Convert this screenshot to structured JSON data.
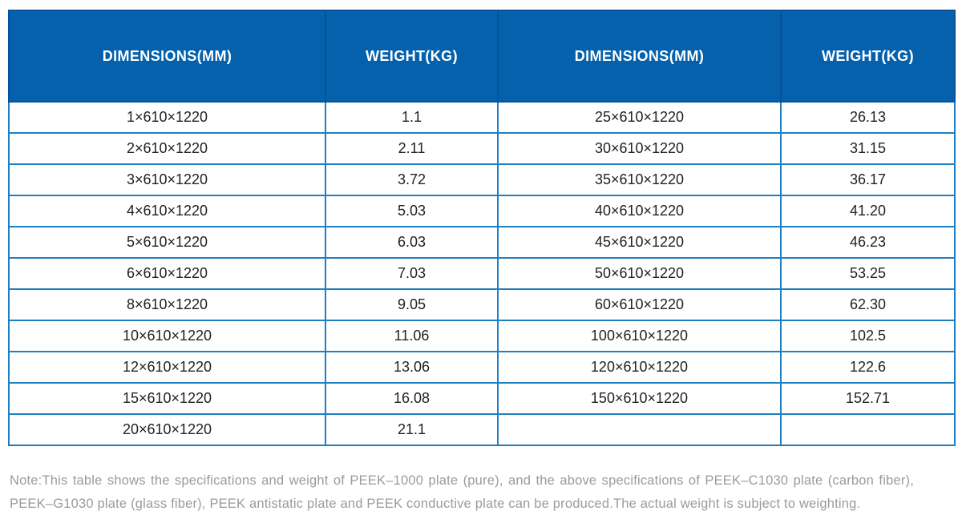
{
  "colors": {
    "header_bg": "#0561ac",
    "header_border": "#05529c",
    "header_text": "#ffffff",
    "body_border": "#1e7fc3",
    "body_text": "#222222",
    "note_text": "#9b9b9b"
  },
  "table": {
    "headers": [
      "DIMENSIONS(MM)",
      "WEIGHT(KG)",
      "DIMENSIONS(MM)",
      "WEIGHT(KG)"
    ],
    "rows": [
      [
        "1×610×1220",
        "1.1",
        "25×610×1220",
        "26.13"
      ],
      [
        "2×610×1220",
        "2.11",
        "30×610×1220",
        "31.15"
      ],
      [
        "3×610×1220",
        "3.72",
        "35×610×1220",
        "36.17"
      ],
      [
        "4×610×1220",
        "5.03",
        "40×610×1220",
        "41.20"
      ],
      [
        "5×610×1220",
        "6.03",
        "45×610×1220",
        "46.23"
      ],
      [
        "6×610×1220",
        "7.03",
        "50×610×1220",
        "53.25"
      ],
      [
        "8×610×1220",
        "9.05",
        "60×610×1220",
        "62.30"
      ],
      [
        "10×610×1220",
        "11.06",
        "100×610×1220",
        "102.5"
      ],
      [
        "12×610×1220",
        "13.06",
        "120×610×1220",
        "122.6"
      ],
      [
        "15×610×1220",
        "16.08",
        "150×610×1220",
        "152.71"
      ],
      [
        "20×610×1220",
        "21.1",
        "",
        ""
      ]
    ]
  },
  "note": {
    "text": "Note:This table shows the specifications and weight of PEEK–1000 plate (pure), and the above specifications of PEEK–C1030 plate (carbon fiber), PEEK–G1030 plate (glass fiber), PEEK antistatic plate and PEEK conductive plate can be produced.The actual weight is subject to weighting."
  }
}
